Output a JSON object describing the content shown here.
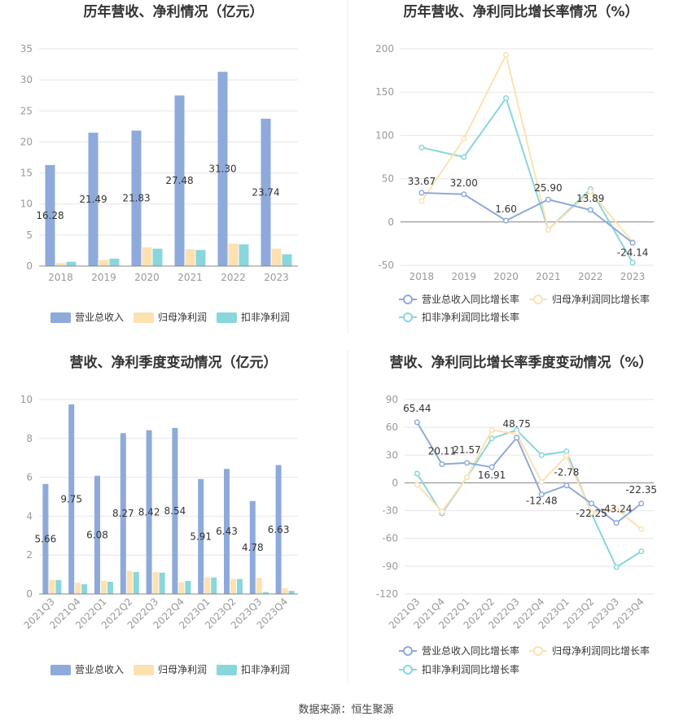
{
  "colors": {
    "revenue": "#8eaadb",
    "net_profit": "#fde1b1",
    "deducted_profit": "#89d6dc",
    "grid": "#e6e6e6",
    "axis": "#888888",
    "revenue_line": "#8eaadb",
    "net_profit_line": "#fde1b1",
    "deducted_line": "#89d6dc"
  },
  "legends": {
    "revenue": "营业总收入",
    "net_profit": "归母净利润",
    "deducted_profit": "扣非净利润",
    "revenue_growth": "营业总收入同比增长率",
    "net_growth": "归母净利润同比增长率",
    "deducted_growth": "扣非净利润同比增长率"
  },
  "source": "数据来源：恒生聚源",
  "chart_data": [
    {
      "type": "bar",
      "title": "历年营收、净利情况（亿元）",
      "categories": [
        "2018",
        "2019",
        "2020",
        "2021",
        "2022",
        "2023"
      ],
      "ylim": [
        0,
        35
      ],
      "yticks": [
        0,
        5,
        10,
        15,
        20,
        25,
        30,
        35
      ],
      "series": [
        {
          "name": "营业总收入",
          "values": [
            16.28,
            21.49,
            21.83,
            27.48,
            31.3,
            23.74
          ],
          "labels": [
            "16.28",
            "21.49",
            "21.83",
            "27.48",
            "31.30",
            "23.74"
          ]
        },
        {
          "name": "归母净利润",
          "values": [
            0.5,
            1.0,
            3.0,
            2.7,
            3.6,
            2.8
          ]
        },
        {
          "name": "扣非净利润",
          "values": [
            0.7,
            1.2,
            2.8,
            2.6,
            3.5,
            1.9
          ]
        }
      ]
    },
    {
      "type": "line",
      "title": "历年营收、净利同比增长率情况（%）",
      "categories": [
        "2018",
        "2019",
        "2020",
        "2021",
        "2022",
        "2023"
      ],
      "ylim": [
        -50,
        200
      ],
      "yticks": [
        -50,
        0,
        50,
        100,
        150,
        200
      ],
      "series": [
        {
          "name": "营业总收入同比增长率",
          "values": [
            33.67,
            32.0,
            1.6,
            25.9,
            13.89,
            -24.14
          ],
          "labels": [
            "33.67",
            "32.00",
            "1.60",
            "25.90",
            "13.89",
            "-24.14"
          ]
        },
        {
          "name": "归母净利润同比增长率",
          "values": [
            24,
            96,
            193,
            -9,
            35,
            -23
          ]
        },
        {
          "name": "扣非净利润同比增长率",
          "values": [
            86,
            75,
            143,
            -9,
            38,
            -47
          ]
        }
      ]
    },
    {
      "type": "bar",
      "title": "营收、净利季度变动情况（亿元）",
      "categories": [
        "2021Q3",
        "2021Q4",
        "2022Q1",
        "2022Q2",
        "2022Q3",
        "2022Q4",
        "2023Q1",
        "2023Q2",
        "2023Q3",
        "2023Q4"
      ],
      "ylim": [
        0,
        10
      ],
      "yticks": [
        0,
        2,
        4,
        6,
        8,
        10
      ],
      "series": [
        {
          "name": "营业总收入",
          "values": [
            5.66,
            9.75,
            6.08,
            8.27,
            8.42,
            8.54,
            5.91,
            6.43,
            4.78,
            6.63
          ],
          "labels": [
            "5.66",
            "9.75",
            "6.08",
            "8.27",
            "8.42",
            "8.54",
            "5.91",
            "6.43",
            "4.78",
            "6.63"
          ]
        },
        {
          "name": "归母净利润",
          "values": [
            0.73,
            0.58,
            0.68,
            1.18,
            1.13,
            0.6,
            0.85,
            0.78,
            0.82,
            0.3
          ]
        },
        {
          "name": "扣非净利润",
          "values": [
            0.72,
            0.5,
            0.63,
            1.13,
            1.1,
            0.67,
            0.85,
            0.77,
            0.1,
            0.16
          ]
        }
      ]
    },
    {
      "type": "line",
      "title": "营收、净利同比增长率季度变动情况（%）",
      "categories": [
        "2021Q3",
        "2021Q4",
        "2022Q1",
        "2022Q2",
        "2022Q3",
        "2022Q4",
        "2023Q1",
        "2023Q2",
        "2023Q3",
        "2023Q4"
      ],
      "ylim": [
        -120,
        90
      ],
      "yticks": [
        -120,
        -90,
        -60,
        -30,
        0,
        30,
        60,
        90
      ],
      "series": [
        {
          "name": "营业总收入同比增长率",
          "values": [
            65.44,
            20.11,
            21.57,
            16.91,
            48.75,
            -12.48,
            -2.78,
            -22.25,
            -43.24,
            -22.35
          ],
          "labels": [
            "65.44",
            "20.11",
            "21.57",
            "16.91",
            "48.75",
            "-12.48",
            "-2.78",
            "-22.25",
            "-43.24",
            "-22.35"
          ]
        },
        {
          "name": "归母净利润同比增长率",
          "values": [
            -2,
            -31,
            6,
            57,
            53,
            1,
            29,
            -32,
            -28,
            -50
          ]
        },
        {
          "name": "扣非净利润同比增长率",
          "values": [
            10,
            -33,
            6,
            48,
            57,
            30,
            34,
            -33,
            -91,
            -74
          ]
        }
      ]
    }
  ]
}
